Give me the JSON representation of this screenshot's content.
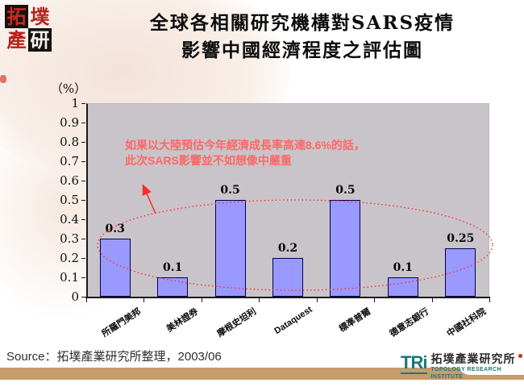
{
  "header": {
    "corner_logo_chars": [
      "拓",
      "墣",
      "產",
      "研"
    ],
    "title_line1": "全球各相關研究機構對SARS疫情",
    "title_line2": "影響中國經濟程度之評估圖"
  },
  "chart_data": {
    "type": "bar",
    "title": "全球各相關研究機構對SARS疫情影響中國經濟程度之評估圖",
    "unit_label": "（%）",
    "categories": [
      "所羅門美邦",
      "美林證券",
      "摩根史坦利",
      "Dataquest",
      "標準普爾",
      "德意志銀行",
      "中國社科院"
    ],
    "values": [
      0.3,
      0.1,
      0.5,
      0.2,
      0.5,
      0.1,
      0.25
    ],
    "value_labels": [
      "0.3",
      "0.1",
      "0.5",
      "0.2",
      "0.5",
      "0.1",
      "0.25"
    ],
    "y_ticks": [
      "1",
      "0.9",
      "0.8",
      "0.7",
      "0.6",
      "0.5",
      "0.4",
      "0.3",
      "0.2",
      "0.1",
      "0"
    ],
    "ylim": [
      0,
      1
    ],
    "grid": false,
    "legend": false,
    "bar_color": "#9999ff",
    "bar_border_color": "#000050",
    "plot_bg_color": "#c9c4c9",
    "annotation": {
      "line1": "如果以大陸預估今年經濟成長率高達8.6%的話，",
      "line2": "此次SARS影響並不如想像中嚴重",
      "text_color": "#ff6666",
      "ellipse_color": "#ff2a2a"
    }
  },
  "footer": {
    "source": "Source：拓墣產業研究所整理，2003/06",
    "logo": {
      "tri": "TRi",
      "chinese": "拓墣產業研究所",
      "english": "TOPOLOGY RESEARCH INSTITUTE",
      "teal": "#1a7878",
      "bar_color": "#c79b6b"
    }
  }
}
